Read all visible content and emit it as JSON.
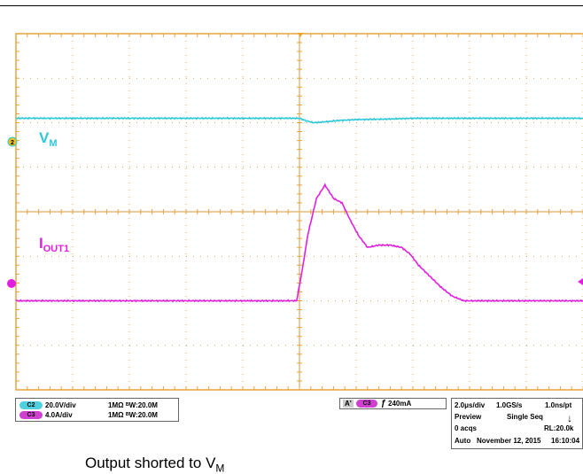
{
  "colors": {
    "grid_border": "#e8a33a",
    "grid_dots": "#c98a2a",
    "ch2": "#2ec8d8",
    "ch3": "#e020e0",
    "ch2_badge": "#4fd0de",
    "ch3_badge": "#d040d0"
  },
  "chart_data": {
    "type": "line",
    "title": "",
    "xlabel": "",
    "ylabel": "",
    "grid": true,
    "divisions": {
      "x": 10,
      "y": 8
    },
    "x_unit": "div",
    "y_unit": "div",
    "xlim": [
      0,
      10
    ],
    "ylim": [
      -4,
      4
    ],
    "series": [
      {
        "name": "",
        "channel": "2",
        "label_main": "V",
        "label_sub": "M",
        "x": [
          0,
          5.0,
          5.1,
          5.25,
          5.45,
          5.7,
          6.0,
          6.5,
          7.0,
          10
        ],
        "y": [
          2.1,
          2.1,
          2.05,
          2.0,
          2.02,
          2.05,
          2.07,
          2.08,
          2.1,
          2.1
        ]
      },
      {
        "name": "",
        "channel": "3",
        "label_main": "I",
        "label_sub": "OUT1",
        "x": [
          0,
          4.95,
          5.05,
          5.15,
          5.3,
          5.45,
          5.6,
          5.75,
          5.9,
          6.05,
          6.2,
          6.4,
          6.6,
          6.8,
          6.95,
          7.1,
          7.3,
          7.5,
          7.7,
          7.9,
          8.0,
          10
        ],
        "y": [
          -2.0,
          -2.0,
          -1.3,
          -0.5,
          0.3,
          0.6,
          0.3,
          0.2,
          -0.2,
          -0.55,
          -0.8,
          -0.75,
          -0.75,
          -0.8,
          -0.95,
          -1.2,
          -1.45,
          -1.7,
          -1.9,
          -2.0,
          -2.0,
          -2.0
        ]
      }
    ],
    "markers": {
      "ch2_level": "2",
      "ch3_level": ""
    }
  },
  "info": {
    "ch2_scale": "20.0V/div",
    "ch2_impedance": "1MΩ",
    "ch2_bw": "ᴮW:20.0M",
    "ch3_scale": "4.0A/div",
    "ch3_impedance": "1MΩ",
    "ch3_bw": "ᴮW:20.0M",
    "ch2_badge": "C2",
    "ch3_badge": "C3",
    "trigger_a": "A'",
    "trigger_badge": "C3",
    "trigger_slope": "ƒ",
    "trigger_level": "240mA",
    "timebase": "2.0μs/div",
    "sample_rate": "1.0GS/s",
    "resolution": "1.0ns/pt",
    "mode": "Preview",
    "seq": "Single Seq",
    "acqs": "0 acqs",
    "record_length": "RL:20.0k",
    "auto": "Auto",
    "date": "November 12, 2015",
    "time": "16:10:04"
  },
  "caption": {
    "main": "Output shorted to V",
    "sub": "M"
  }
}
